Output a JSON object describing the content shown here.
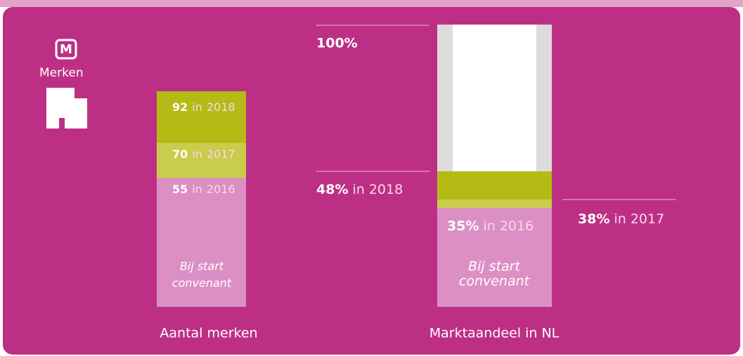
{
  "icon": {
    "letter": "M",
    "label": "Merken"
  },
  "chart_data": [
    {
      "type": "bar",
      "xlabel": "Aantal merken",
      "categories": [
        "2016",
        "2017",
        "2018"
      ],
      "values": [
        55,
        70,
        92
      ],
      "colors": [
        "#dc8fc4",
        "#c9cc4c",
        "#b3bb14"
      ],
      "ylim": [
        0,
        92
      ],
      "joiner": "in",
      "annotation": [
        "Bij start",
        "convenant"
      ]
    },
    {
      "type": "bar",
      "xlabel": "Marktaandeel in NL",
      "categories": [
        "2016",
        "2017",
        "2018"
      ],
      "values": [
        35,
        38,
        48
      ],
      "value_labels": [
        "35%",
        "38%",
        "48%"
      ],
      "colors": [
        "#dc8fc4",
        "#c9cc4c",
        "#b3bb14"
      ],
      "ylim": [
        0,
        100
      ],
      "yticks": [
        {
          "value": 100,
          "label": "100%"
        }
      ],
      "joiner": "in",
      "annotation": [
        "Bij start",
        "convenant"
      ]
    }
  ]
}
